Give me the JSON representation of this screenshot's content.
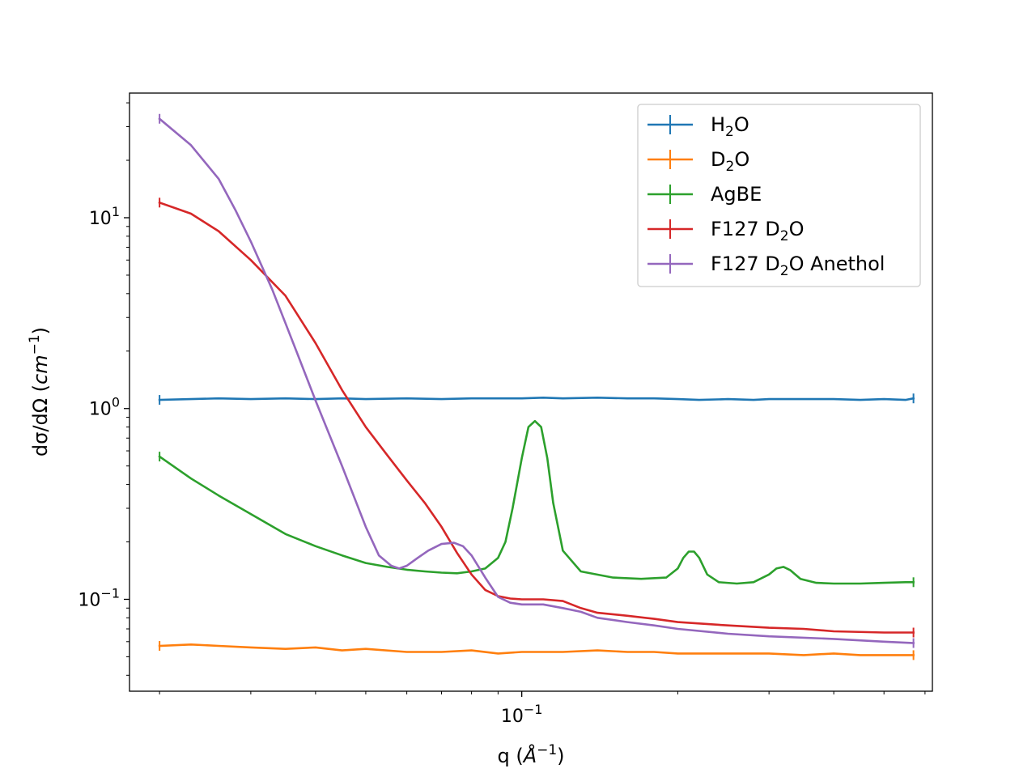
{
  "chart_data": {
    "type": "line",
    "title": "",
    "xscale": "log",
    "yscale": "log",
    "xlim": [
      0.0175,
      0.62
    ],
    "ylim": [
      0.033,
      45
    ],
    "grid": false,
    "legend_position": "top-right",
    "xlabel": {
      "main": "q (",
      "sym": "Å",
      "sup": "−1",
      "close": ")"
    },
    "ylabel": {
      "main": "dσ/dΩ (",
      "sym": "cm",
      "sup": "−1",
      "close": ")"
    },
    "x_major_ticks": [
      {
        "value": 0.1,
        "base": "10",
        "exp": "−1"
      }
    ],
    "x_minor_ticks": [
      0.02,
      0.03,
      0.04,
      0.05,
      0.06,
      0.07,
      0.08,
      0.09,
      0.2,
      0.3,
      0.4,
      0.5,
      0.6
    ],
    "y_major_ticks": [
      {
        "value": 0.1,
        "base": "10",
        "exp": "−1"
      },
      {
        "value": 1,
        "base": "10",
        "exp": "0"
      },
      {
        "value": 10,
        "base": "10",
        "exp": "1"
      }
    ],
    "y_minor_ticks": [
      0.04,
      0.05,
      0.06,
      0.07,
      0.08,
      0.09,
      0.2,
      0.3,
      0.4,
      0.5,
      0.6,
      0.7,
      0.8,
      0.9,
      2,
      3,
      4,
      5,
      6,
      7,
      8,
      9,
      20,
      30,
      40
    ],
    "series": [
      {
        "name": "H₂O",
        "legend": {
          "pre": "H",
          "sub": "2",
          "post": "O"
        },
        "color": "#1f77b4",
        "x": [
          0.02,
          0.023,
          0.026,
          0.03,
          0.035,
          0.04,
          0.045,
          0.05,
          0.06,
          0.07,
          0.08,
          0.09,
          0.1,
          0.11,
          0.12,
          0.14,
          0.16,
          0.18,
          0.2,
          0.22,
          0.25,
          0.28,
          0.3,
          0.35,
          0.4,
          0.45,
          0.5,
          0.55,
          0.57
        ],
        "y": [
          1.11,
          1.12,
          1.13,
          1.12,
          1.13,
          1.12,
          1.13,
          1.12,
          1.13,
          1.12,
          1.13,
          1.13,
          1.13,
          1.14,
          1.13,
          1.14,
          1.13,
          1.13,
          1.12,
          1.11,
          1.12,
          1.11,
          1.12,
          1.12,
          1.12,
          1.11,
          1.12,
          1.11,
          1.13
        ]
      },
      {
        "name": "D₂O",
        "legend": {
          "pre": "D",
          "sub": "2",
          "post": "O"
        },
        "color": "#ff7f0e",
        "x": [
          0.02,
          0.023,
          0.026,
          0.03,
          0.035,
          0.04,
          0.045,
          0.05,
          0.06,
          0.07,
          0.08,
          0.09,
          0.1,
          0.12,
          0.14,
          0.16,
          0.18,
          0.2,
          0.25,
          0.3,
          0.35,
          0.4,
          0.45,
          0.5,
          0.55,
          0.57
        ],
        "y": [
          0.057,
          0.058,
          0.057,
          0.056,
          0.055,
          0.056,
          0.054,
          0.055,
          0.053,
          0.053,
          0.054,
          0.052,
          0.053,
          0.053,
          0.054,
          0.053,
          0.053,
          0.052,
          0.052,
          0.052,
          0.051,
          0.052,
          0.051,
          0.051,
          0.051,
          0.051
        ]
      },
      {
        "name": "AgBE",
        "legend": {
          "pre": "AgBE",
          "sub": "",
          "post": ""
        },
        "color": "#2ca02c",
        "x": [
          0.02,
          0.023,
          0.026,
          0.03,
          0.035,
          0.04,
          0.045,
          0.05,
          0.055,
          0.06,
          0.065,
          0.07,
          0.075,
          0.08,
          0.085,
          0.09,
          0.093,
          0.096,
          0.1,
          0.103,
          0.106,
          0.109,
          0.112,
          0.115,
          0.12,
          0.13,
          0.15,
          0.17,
          0.19,
          0.2,
          0.205,
          0.21,
          0.215,
          0.22,
          0.228,
          0.24,
          0.26,
          0.28,
          0.3,
          0.31,
          0.32,
          0.33,
          0.345,
          0.37,
          0.4,
          0.45,
          0.5,
          0.55,
          0.57
        ],
        "y": [
          0.56,
          0.43,
          0.35,
          0.28,
          0.22,
          0.19,
          0.17,
          0.155,
          0.148,
          0.143,
          0.14,
          0.138,
          0.137,
          0.14,
          0.145,
          0.165,
          0.2,
          0.3,
          0.55,
          0.8,
          0.86,
          0.8,
          0.55,
          0.32,
          0.18,
          0.14,
          0.13,
          0.128,
          0.13,
          0.145,
          0.165,
          0.178,
          0.178,
          0.165,
          0.135,
          0.123,
          0.121,
          0.123,
          0.135,
          0.145,
          0.148,
          0.142,
          0.128,
          0.122,
          0.121,
          0.121,
          0.122,
          0.123,
          0.123
        ]
      },
      {
        "name": "F127 D₂O",
        "legend": {
          "pre": "F127 D",
          "sub": "2",
          "post": "O"
        },
        "color": "#d62728",
        "x": [
          0.02,
          0.023,
          0.026,
          0.03,
          0.035,
          0.04,
          0.045,
          0.05,
          0.055,
          0.06,
          0.065,
          0.07,
          0.075,
          0.08,
          0.085,
          0.09,
          0.095,
          0.1,
          0.11,
          0.12,
          0.13,
          0.14,
          0.16,
          0.18,
          0.2,
          0.25,
          0.3,
          0.35,
          0.4,
          0.5,
          0.57
        ],
        "y": [
          12.0,
          10.5,
          8.5,
          6.0,
          3.9,
          2.2,
          1.25,
          0.8,
          0.57,
          0.42,
          0.32,
          0.24,
          0.175,
          0.135,
          0.112,
          0.104,
          0.101,
          0.1,
          0.1,
          0.098,
          0.09,
          0.085,
          0.082,
          0.079,
          0.076,
          0.073,
          0.071,
          0.07,
          0.068,
          0.067,
          0.067
        ]
      },
      {
        "name": "F127 D₂O Anethol",
        "legend": {
          "pre": "F127 D",
          "sub": "2",
          "post": "O Anethol"
        },
        "color": "#9467bd",
        "x": [
          0.02,
          0.023,
          0.026,
          0.028,
          0.03,
          0.033,
          0.035,
          0.037,
          0.04,
          0.045,
          0.05,
          0.053,
          0.056,
          0.058,
          0.06,
          0.063,
          0.066,
          0.07,
          0.074,
          0.077,
          0.08,
          0.085,
          0.09,
          0.095,
          0.1,
          0.11,
          0.12,
          0.13,
          0.14,
          0.16,
          0.18,
          0.2,
          0.25,
          0.3,
          0.4,
          0.5,
          0.57
        ],
        "y": [
          33.0,
          24.0,
          16.0,
          11.0,
          7.5,
          4.2,
          2.8,
          1.9,
          1.1,
          0.5,
          0.24,
          0.17,
          0.15,
          0.145,
          0.15,
          0.165,
          0.18,
          0.195,
          0.198,
          0.19,
          0.17,
          0.13,
          0.103,
          0.096,
          0.094,
          0.094,
          0.09,
          0.086,
          0.08,
          0.076,
          0.073,
          0.07,
          0.066,
          0.064,
          0.062,
          0.06,
          0.059
        ]
      }
    ]
  }
}
